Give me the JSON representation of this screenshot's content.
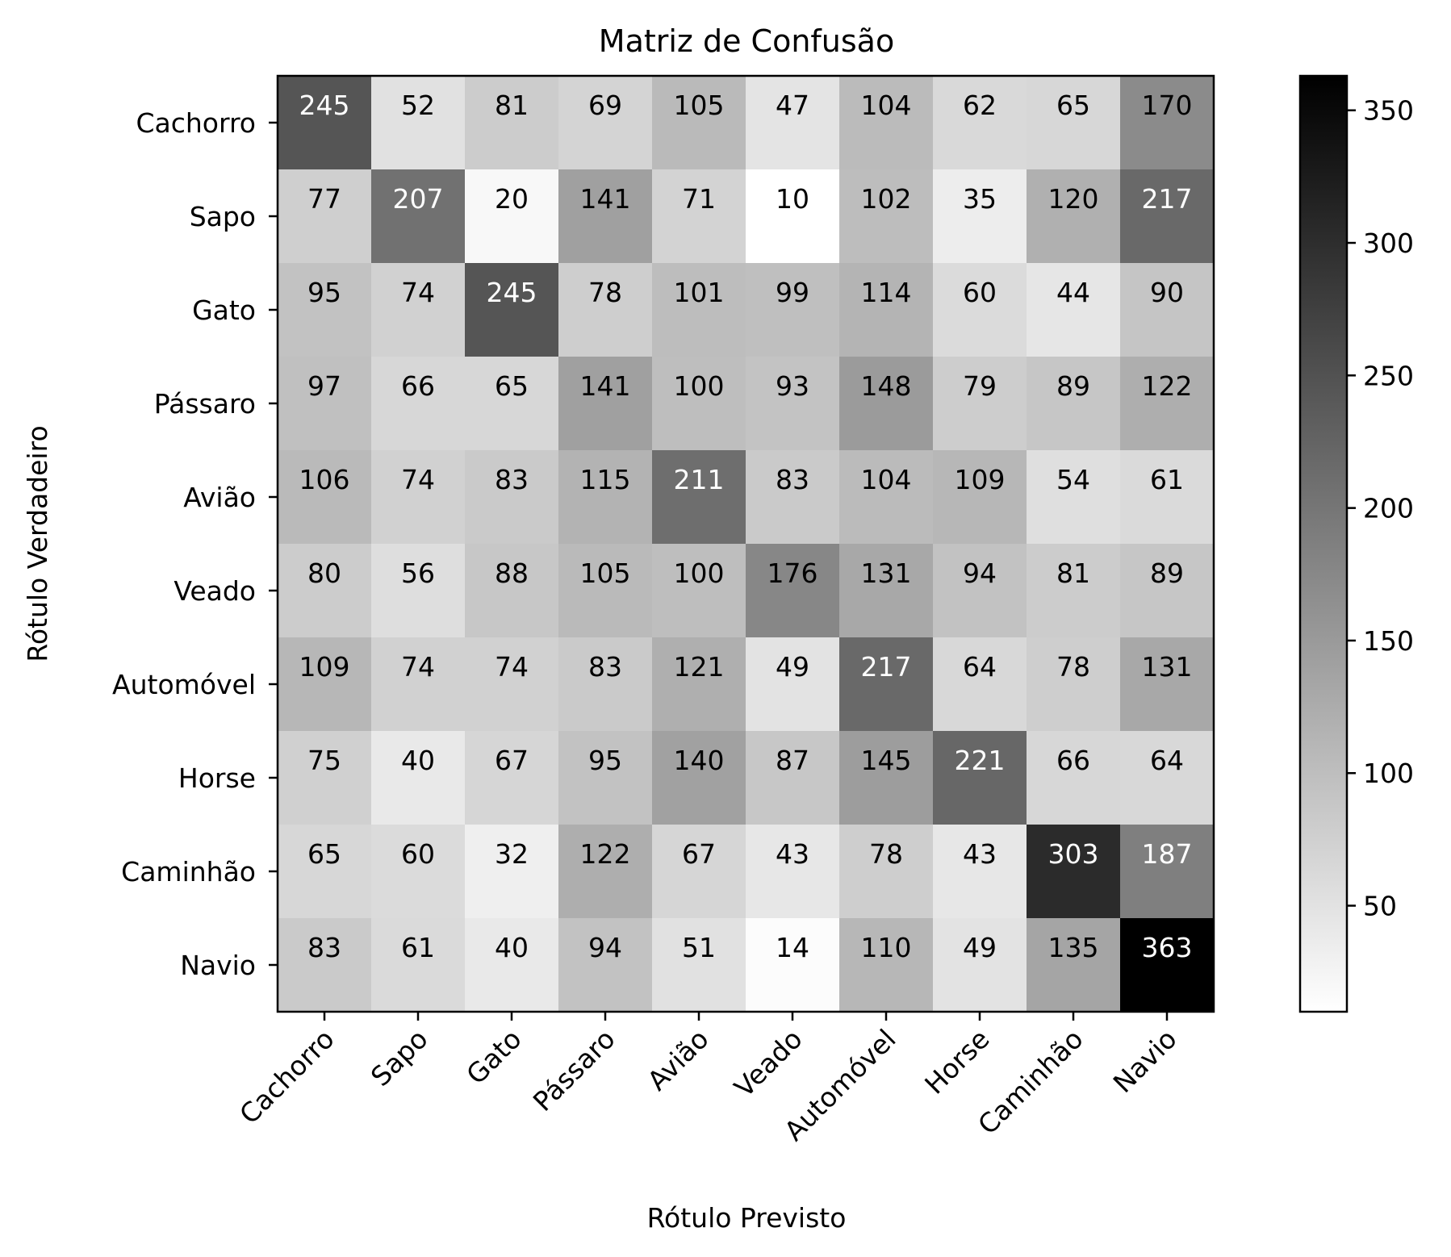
{
  "chart_data": {
    "type": "heatmap",
    "title": "Matriz de Confusão",
    "xlabel": "Rótulo Previsto",
    "ylabel": "Rótulo Verdadeiro",
    "x_categories": [
      "Cachorro",
      "Sapo",
      "Gato",
      "Pássaro",
      "Avião",
      "Veado",
      "Automóvel",
      "Horse",
      "Caminhão",
      "Navio"
    ],
    "y_categories": [
      "Cachorro",
      "Sapo",
      "Gato",
      "Pássaro",
      "Avião",
      "Veado",
      "Automóvel",
      "Horse",
      "Caminhão",
      "Navio"
    ],
    "values": [
      [
        245,
        52,
        81,
        69,
        105,
        47,
        104,
        62,
        65,
        170
      ],
      [
        77,
        207,
        20,
        141,
        71,
        10,
        102,
        35,
        120,
        217
      ],
      [
        95,
        74,
        245,
        78,
        101,
        99,
        114,
        60,
        44,
        90
      ],
      [
        97,
        66,
        65,
        141,
        100,
        93,
        148,
        79,
        89,
        122
      ],
      [
        106,
        74,
        83,
        115,
        211,
        83,
        104,
        109,
        54,
        61
      ],
      [
        80,
        56,
        88,
        105,
        100,
        176,
        131,
        94,
        81,
        89
      ],
      [
        109,
        74,
        74,
        83,
        121,
        49,
        217,
        64,
        78,
        131
      ],
      [
        75,
        40,
        67,
        95,
        140,
        87,
        145,
        221,
        66,
        64
      ],
      [
        65,
        60,
        32,
        122,
        67,
        43,
        78,
        43,
        303,
        187
      ],
      [
        83,
        61,
        40,
        94,
        51,
        14,
        110,
        49,
        135,
        363
      ]
    ],
    "colormap": "Greys",
    "vmin": 10,
    "vmax": 363,
    "colorbar_ticks": [
      50,
      100,
      150,
      200,
      250,
      300,
      350
    ],
    "grid": false
  }
}
